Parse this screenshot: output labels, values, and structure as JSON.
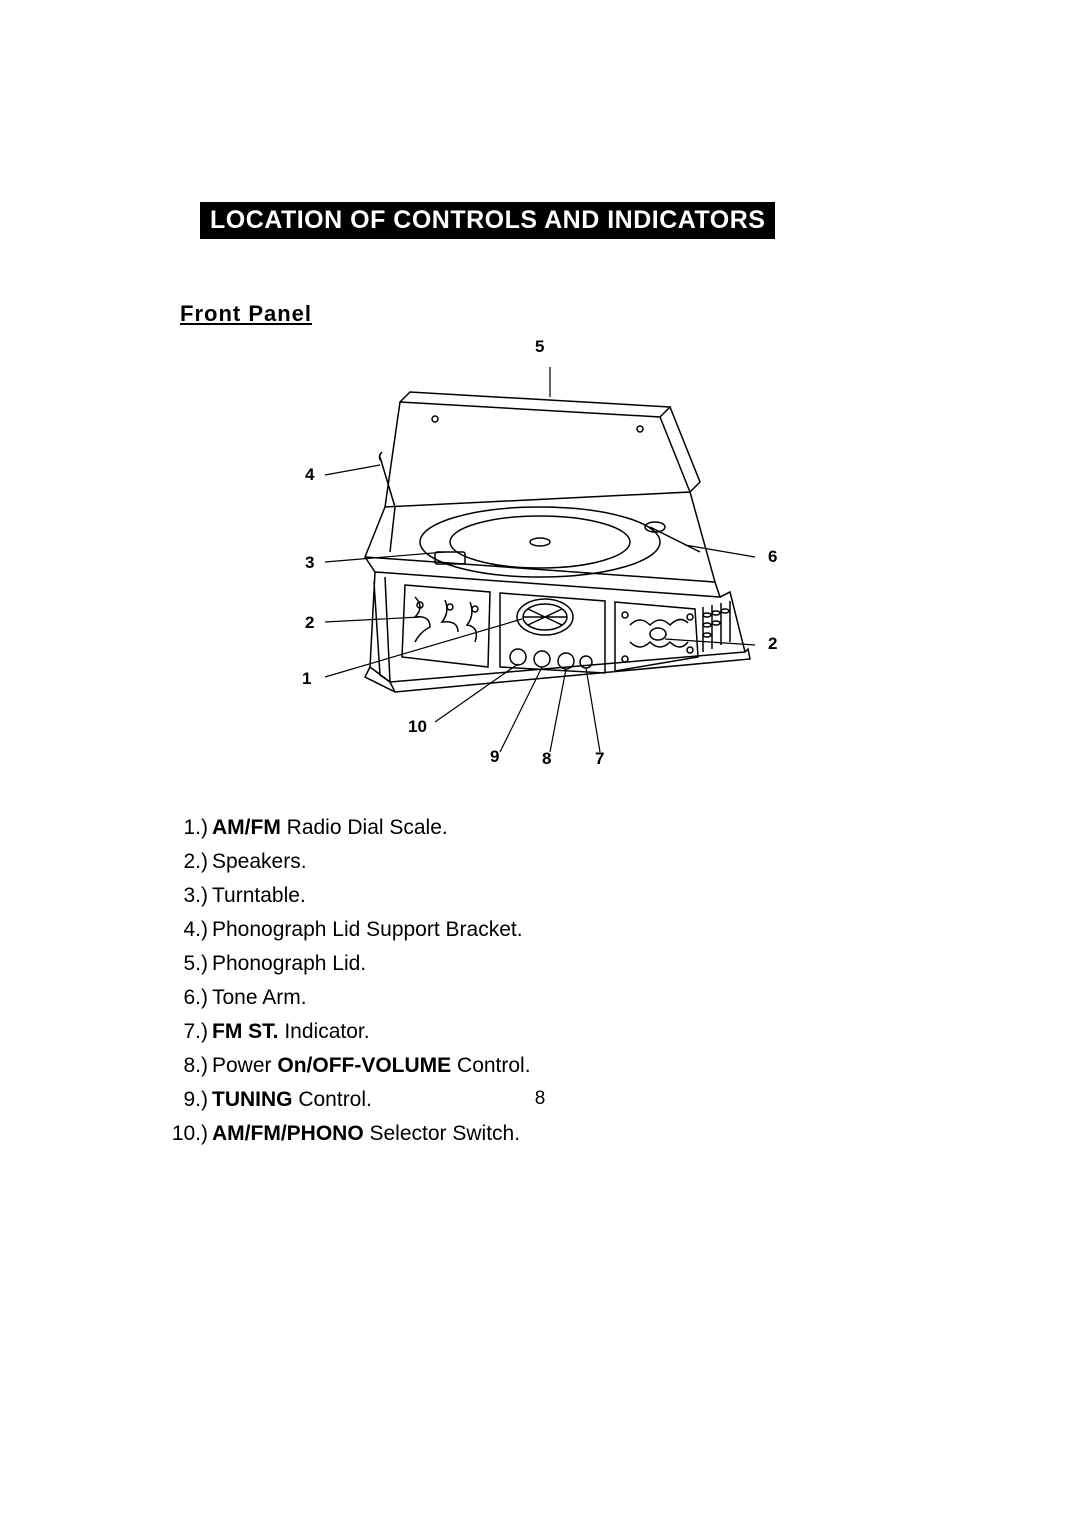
{
  "title": "LOCATION OF CONTROLS AND INDICATORS",
  "subtitle": "Front Panel",
  "callouts": {
    "c1": "1",
    "c2a": "2",
    "c2b": "2",
    "c3": "3",
    "c4": "4",
    "c5": "5",
    "c6": "6",
    "c7": "7",
    "c8": "8",
    "c9": "9",
    "c10": "10"
  },
  "items": [
    {
      "num": "1.)",
      "parts": [
        {
          "t": "AM/FM",
          "b": true
        },
        {
          "t": " Radio Dial Scale.",
          "b": false
        }
      ]
    },
    {
      "num": "2.)",
      "parts": [
        {
          "t": "Speakers.",
          "b": false
        }
      ]
    },
    {
      "num": "3.)",
      "parts": [
        {
          "t": "Turntable.",
          "b": false
        }
      ]
    },
    {
      "num": "4.)",
      "parts": [
        {
          "t": "Phonograph Lid Support Bracket.",
          "b": false
        }
      ]
    },
    {
      "num": "5.)",
      "parts": [
        {
          "t": "Phonograph Lid.",
          "b": false
        }
      ]
    },
    {
      "num": "6.)",
      "parts": [
        {
          "t": "Tone Arm.",
          "b": false
        }
      ]
    },
    {
      "num": "7.)",
      "parts": [
        {
          "t": "FM ST.",
          "b": true
        },
        {
          "t": " Indicator.",
          "b": false
        }
      ]
    },
    {
      "num": "8.)",
      "parts": [
        {
          "t": "Power ",
          "b": false
        },
        {
          "t": "On/OFF-VOLUME",
          "b": true
        },
        {
          "t": " Control.",
          "b": false
        }
      ]
    },
    {
      "num": "9.)",
      "parts": [
        {
          "t": "TUNING",
          "b": true
        },
        {
          "t": " Control.",
          "b": false
        }
      ]
    },
    {
      "num": "10.)",
      "parts": [
        {
          "t": "AM/FM/PHONO",
          "b": true
        },
        {
          "t": " Selector Switch.",
          "b": false
        }
      ]
    }
  ],
  "page_number": "8",
  "colors": {
    "bg": "#ffffff",
    "text": "#000000",
    "title_bg": "#000000",
    "title_fg": "#ffffff"
  }
}
